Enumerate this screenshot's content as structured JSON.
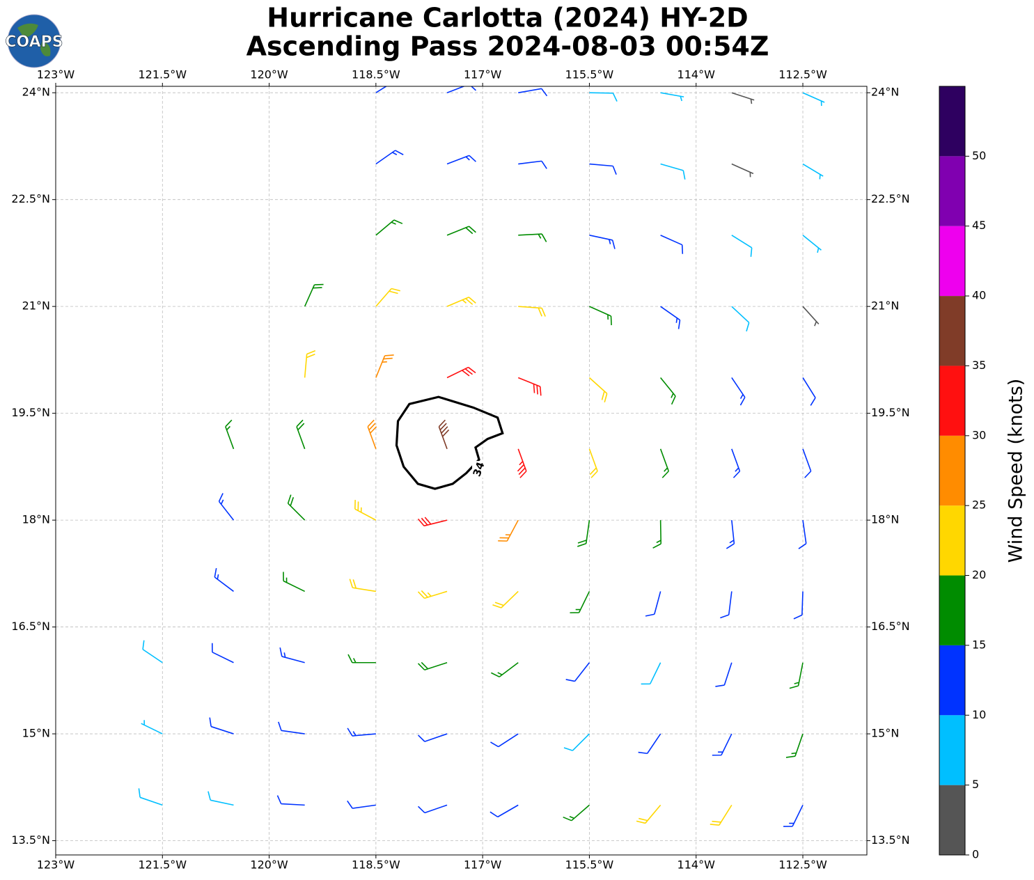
{
  "chart_data": {
    "type": "barbs",
    "logo": "COAPS",
    "title": "Hurricane Carlotta (2024) HY-2D",
    "subtitle": "Ascending Pass 2024-08-03 00:54Z",
    "grid": true,
    "xlim": [
      -123,
      -111.6
    ],
    "ylim": [
      13.3,
      24.09
    ],
    "xticks": [
      {
        "value": -123,
        "label": "123°W"
      },
      {
        "value": -121.5,
        "label": "121.5°W"
      },
      {
        "value": -120,
        "label": "120°W"
      },
      {
        "value": -118.5,
        "label": "118.5°W"
      },
      {
        "value": -117,
        "label": "117°W"
      },
      {
        "value": -115.5,
        "label": "115.5°W"
      },
      {
        "value": -114,
        "label": "114°W"
      },
      {
        "value": -112.5,
        "label": "112.5°W"
      }
    ],
    "yticks": [
      {
        "value": 13.5,
        "label": "13.5°N"
      },
      {
        "value": 15,
        "label": "15°N"
      },
      {
        "value": 16.5,
        "label": "16.5°N"
      },
      {
        "value": 18,
        "label": "18°N"
      },
      {
        "value": 19.5,
        "label": "19.5°N"
      },
      {
        "value": 21,
        "label": "21°N"
      },
      {
        "value": 22.5,
        "label": "22.5°N"
      },
      {
        "value": 24,
        "label": "24°N"
      }
    ],
    "lon": [
      -122.5,
      -121.5,
      -120.5,
      -119.5,
      -118.5,
      -117.5,
      -116.5,
      -115.5,
      -114.5,
      -113.5,
      -112.5
    ],
    "lat": [
      14,
      15,
      16,
      17,
      18,
      19,
      20,
      21,
      22,
      23,
      24
    ],
    "speed": [
      [
        null,
        8,
        9,
        12,
        12,
        10,
        12,
        17,
        22,
        20,
        13
      ],
      [
        null,
        7,
        10,
        12,
        13,
        12,
        10,
        8,
        10,
        13,
        17
      ],
      [
        null,
        9,
        12,
        14,
        17,
        18,
        15,
        11,
        9,
        12,
        16
      ],
      [
        null,
        null,
        13,
        16,
        21,
        24,
        20,
        15,
        12,
        11,
        12
      ],
      [
        null,
        null,
        14,
        18,
        24,
        30,
        26,
        18,
        15,
        13,
        12
      ],
      [
        null,
        null,
        15,
        19,
        28,
        38,
        33,
        22,
        16,
        13,
        12
      ],
      [
        null,
        null,
        null,
        20,
        25,
        32,
        30,
        22,
        17,
        13,
        10
      ],
      [
        null,
        null,
        null,
        18,
        22,
        24,
        22,
        17,
        13,
        9,
        4
      ],
      [
        null,
        null,
        null,
        null,
        17,
        18,
        16,
        13,
        11,
        8,
        6
      ],
      [
        null,
        null,
        null,
        null,
        13,
        13,
        12,
        10,
        8,
        3,
        5
      ],
      [
        null,
        null,
        null,
        null,
        11,
        11,
        10,
        8,
        7,
        4,
        5
      ]
    ],
    "direction": [
      [
        null,
        289,
        282,
        273,
        262,
        251,
        240,
        229,
        220,
        212,
        206
      ],
      [
        null,
        296,
        288,
        278,
        265,
        251,
        237,
        225,
        214,
        206,
        199
      ],
      [
        null,
        304,
        296,
        285,
        270,
        252,
        233,
        218,
        206,
        198,
        191
      ],
      [
        null,
        null,
        307,
        296,
        279,
        253,
        226,
        206,
        195,
        187,
        182
      ],
      [
        null,
        null,
        322,
        315,
        298,
        256,
        208,
        188,
        179,
        174,
        172
      ],
      [
        null,
        null,
        340,
        340,
        340,
        340,
        160,
        160,
        160,
        160,
        160
      ],
      [
        null,
        null,
        null,
        5,
        22,
        64,
        112,
        132,
        141,
        146,
        148
      ],
      [
        null,
        null,
        null,
        24,
        41,
        67,
        94,
        114,
        125,
        133,
        138
      ],
      [
        null,
        null,
        null,
        null,
        50,
        68,
        87,
        102,
        114,
        122,
        129
      ],
      [
        null,
        null,
        null,
        null,
        55,
        69,
        83,
        95,
        106,
        114,
        121
      ],
      [
        null,
        null,
        null,
        null,
        58,
        69,
        80,
        91,
        100,
        108,
        114
      ]
    ],
    "contour": {
      "level": 34,
      "lon": [
        -118.03,
        -117.62,
        -117.13,
        -116.79,
        -116.72,
        -116.93,
        -117.1,
        -117.05,
        -117.23,
        -117.42,
        -117.67,
        -117.91,
        -118.11,
        -118.21,
        -118.19
      ],
      "lat": [
        19.63,
        19.73,
        19.58,
        19.44,
        19.22,
        19.14,
        19.02,
        18.85,
        18.66,
        18.51,
        18.44,
        18.51,
        18.75,
        19.05,
        19.39
      ]
    },
    "colorbar": {
      "label": "Wind Speed (knots)",
      "bounds": [
        0,
        5,
        10,
        15,
        20,
        25,
        30,
        35,
        40,
        45,
        50,
        55
      ],
      "colors": [
        "#555555",
        "#00bfff",
        "#0033ff",
        "#008c00",
        "#ffd700",
        "#ff8c00",
        "#ff1010",
        "#803c28",
        "#ee00ee",
        "#8000b0",
        "#2e0060"
      ],
      "ticks": [
        0,
        5,
        10,
        15,
        20,
        25,
        30,
        35,
        40,
        45,
        50
      ]
    }
  }
}
